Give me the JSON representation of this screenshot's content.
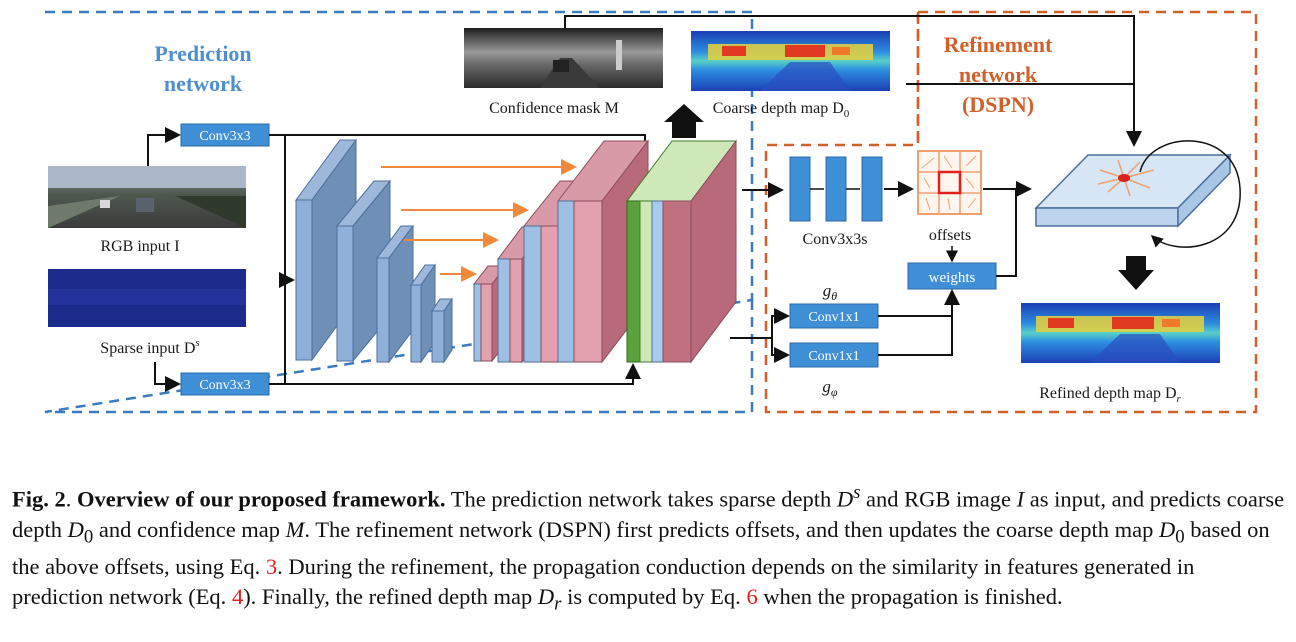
{
  "figure": {
    "prediction_title_1": "Prediction",
    "prediction_title_2": "network",
    "refinement_title_1": "Refinement",
    "refinement_title_2": "network",
    "refinement_title_3": "(DSPN)",
    "rgb_label": "RGB input I",
    "sparse_label": "Sparse input D",
    "sparse_sup": "s",
    "conv_top": "Conv3x3",
    "conv_bottom": "Conv3x3",
    "confidence_label": "Confidence mask M",
    "coarse_label": "Coarse depth map D",
    "coarse_sub": "0",
    "conv3x3s_label": "Conv3x3s",
    "offsets_label": "offsets",
    "weights_label": "weights",
    "g_theta": "g",
    "g_theta_sub": "θ",
    "g_phi": "g",
    "g_phi_sub": "φ",
    "conv1x1_top": "Conv1x1",
    "conv1x1_bottom": "Conv1x1",
    "refined_label": "Refined depth map D",
    "refined_sub": "r",
    "colors": {
      "prediction_border": "#3b7cc0",
      "refinement_border": "#d2602a",
      "conv_box": "#3f8fd6",
      "encoder_block": "#7a9fc7",
      "decoder_pink": "#b96a7a",
      "skip_arrow": "#f08a3a"
    }
  },
  "caption": {
    "fig_no": "Fig. 2",
    "title": "Overview of our proposed framework.",
    "p1": " The prediction network takes sparse depth ",
    "ds": "D",
    "ds_sup": "s",
    "p2": " and RGB image ",
    "i": "I",
    "p3": " as input, and predicts coarse depth ",
    "d0": "D",
    "d0_sub": "0",
    "p4": " and confidence map ",
    "m": "M",
    "p5": ". The refinement network (DSPN) first predicts offsets, and then updates the coarse depth map ",
    "d0b": "D",
    "d0b_sub": "0",
    "p6": " based on the above offsets, using Eq. ",
    "eq3": "3",
    "p7": ". During the refinement, the propagation conduction depends on the similarity in features generated in prediction network (Eq. ",
    "eq4": "4",
    "p8": "). Finally, the refined depth map ",
    "dr": "D",
    "dr_sub": "r",
    "p9": " is computed by Eq. ",
    "eq6": "6",
    "p10": " when the propagation is finished."
  }
}
